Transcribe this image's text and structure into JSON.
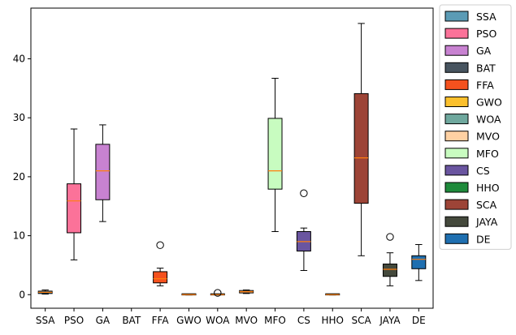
{
  "chart_data": {
    "type": "box",
    "grid": false,
    "legend_position": "outside-right",
    "ylim": [
      -2.3,
      48.6
    ],
    "yticks": [
      0,
      10,
      20,
      30,
      40
    ],
    "ytick_labels": [
      "0",
      "10",
      "20",
      "30",
      "40"
    ],
    "median_color": "#ff7f0e",
    "series": [
      {
        "name": "SSA",
        "color": "#5b9bb5",
        "q1": 0.2,
        "median": 0.4,
        "q3": 0.6,
        "whisker_low": 0.1,
        "whisker_high": 0.8,
        "outliers": []
      },
      {
        "name": "PSO",
        "color": "#fb7299",
        "q1": 10.5,
        "median": 15.9,
        "q3": 18.8,
        "whisker_low": 5.9,
        "whisker_high": 28.1,
        "outliers": []
      },
      {
        "name": "GA",
        "color": "#c882d1",
        "q1": 16.1,
        "median": 21.0,
        "q3": 25.5,
        "whisker_low": 12.4,
        "whisker_high": 28.8,
        "outliers": []
      },
      {
        "name": "BAT",
        "color": "#47545f",
        "q1": null,
        "median": null,
        "q3": null,
        "whisker_low": null,
        "whisker_high": null,
        "outliers": []
      },
      {
        "name": "FFA",
        "color": "#f4511e",
        "q1": 2.0,
        "median": 2.7,
        "q3": 3.9,
        "whisker_low": 1.5,
        "whisker_high": 4.5,
        "outliers": [
          8.4
        ]
      },
      {
        "name": "GWO",
        "color": "#fbc02d",
        "q1": -0.05,
        "median": 0.0,
        "q3": 0.05,
        "whisker_low": -0.05,
        "whisker_high": 0.05,
        "outliers": []
      },
      {
        "name": "WOA",
        "color": "#6fa89e",
        "q1": -0.05,
        "median": 0.0,
        "q3": 0.05,
        "whisker_low": -0.05,
        "whisker_high": 0.05,
        "outliers": [
          0.3
        ]
      },
      {
        "name": "MVO",
        "color": "#ffd1a3",
        "q1": 0.3,
        "median": 0.5,
        "q3": 0.7,
        "whisker_low": 0.2,
        "whisker_high": 0.8,
        "outliers": []
      },
      {
        "name": "MFO",
        "color": "#c8fcc0",
        "q1": 17.9,
        "median": 21.0,
        "q3": 29.9,
        "whisker_low": 10.7,
        "whisker_high": 36.7,
        "outliers": []
      },
      {
        "name": "CS",
        "color": "#6a55a0",
        "q1": 7.4,
        "median": 9.0,
        "q3": 10.7,
        "whisker_low": 4.1,
        "whisker_high": 11.3,
        "outliers": [
          17.2
        ]
      },
      {
        "name": "HHO",
        "color": "#1e8a3b",
        "q1": -0.05,
        "median": 0.0,
        "q3": 0.05,
        "whisker_low": -0.05,
        "whisker_high": 0.05,
        "outliers": []
      },
      {
        "name": "SCA",
        "color": "#9d4437",
        "q1": 15.5,
        "median": 23.2,
        "q3": 34.1,
        "whisker_low": 6.6,
        "whisker_high": 46.0,
        "outliers": []
      },
      {
        "name": "JAYA",
        "color": "#44493c",
        "q1": 3.1,
        "median": 4.3,
        "q3": 5.2,
        "whisker_low": 1.5,
        "whisker_high": 7.1,
        "outliers": [
          9.8
        ]
      },
      {
        "name": "DE",
        "color": "#1f6fb0",
        "q1": 4.4,
        "median": 6.0,
        "q3": 6.6,
        "whisker_low": 2.4,
        "whisker_high": 8.5,
        "outliers": []
      }
    ]
  }
}
